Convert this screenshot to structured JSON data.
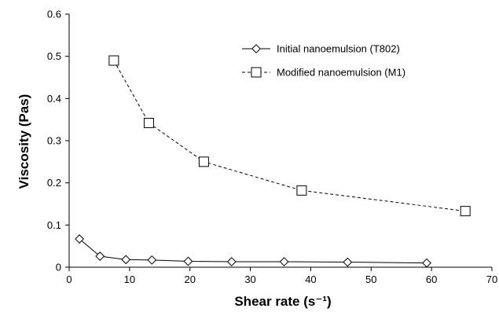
{
  "chart_data": {
    "type": "line",
    "title": "",
    "xlabel": "Shear rate (s⁻¹)",
    "ylabel": "Viscosity (Pas)",
    "xlim": [
      0,
      70
    ],
    "ylim": [
      0,
      0.6
    ],
    "x_ticks": [
      "0",
      "10",
      "20",
      "30",
      "40",
      "50",
      "60",
      "70"
    ],
    "y_ticks": [
      "0",
      "0.1",
      "0.2",
      "0.3",
      "0.4",
      "0.5",
      "0.6"
    ],
    "grid": false,
    "legend_position": "top-right",
    "series": [
      {
        "name": "Initial nanoemulsion (T802)",
        "marker": "diamond",
        "line_style": "solid",
        "color": "#000000",
        "x": [
          1.7,
          5.1,
          9.4,
          13.7,
          19.7,
          26.9,
          35.6,
          46.1,
          59.2
        ],
        "y": [
          0.067,
          0.026,
          0.018,
          0.017,
          0.014,
          0.013,
          0.013,
          0.012,
          0.01
        ]
      },
      {
        "name": "Modified nanoemulsion (M1)",
        "marker": "square",
        "line_style": "dashed",
        "color": "#000000",
        "x": [
          7.4,
          13.2,
          22.3,
          38.5,
          65.6
        ],
        "y": [
          0.49,
          0.342,
          0.25,
          0.182,
          0.133
        ]
      }
    ]
  }
}
